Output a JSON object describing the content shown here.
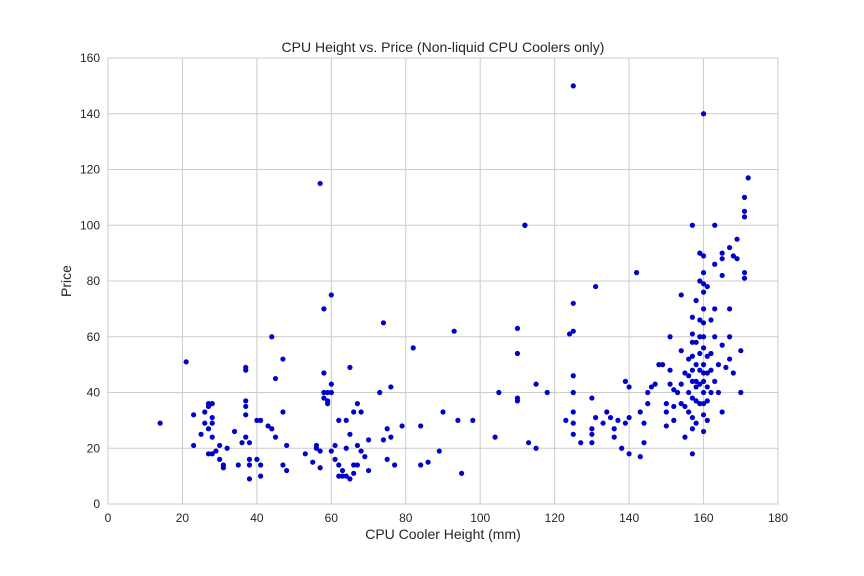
{
  "chart_data": {
    "type": "scatter",
    "title": "CPU Height vs. Price (Non-liquid CPU Coolers only)",
    "xlabel": "CPU Cooler Height (mm)",
    "ylabel": "Price",
    "xlim": [
      0,
      180
    ],
    "ylim": [
      0,
      160
    ],
    "xticks": [
      0,
      20,
      40,
      60,
      80,
      100,
      120,
      140,
      160,
      180
    ],
    "yticks": [
      0,
      20,
      40,
      60,
      80,
      100,
      120,
      140,
      160
    ],
    "grid": true,
    "legend": "none",
    "marker_color": "#0000cc",
    "background_color": "#ffffff",
    "grid_color": "#cccccc",
    "points": [
      [
        14,
        29
      ],
      [
        21,
        51
      ],
      [
        23,
        32
      ],
      [
        23,
        21
      ],
      [
        25,
        25
      ],
      [
        26,
        29
      ],
      [
        26,
        33
      ],
      [
        27,
        18
      ],
      [
        27,
        35
      ],
      [
        27,
        36
      ],
      [
        27,
        27
      ],
      [
        28,
        36
      ],
      [
        28,
        31
      ],
      [
        28,
        29
      ],
      [
        28,
        24
      ],
      [
        28,
        18
      ],
      [
        29,
        19
      ],
      [
        30,
        21
      ],
      [
        30,
        16
      ],
      [
        31,
        14
      ],
      [
        31,
        13
      ],
      [
        32,
        20
      ],
      [
        34,
        26
      ],
      [
        35,
        14
      ],
      [
        36,
        22
      ],
      [
        37,
        49
      ],
      [
        37,
        48
      ],
      [
        37,
        37
      ],
      [
        37,
        35
      ],
      [
        37,
        32
      ],
      [
        37,
        24
      ],
      [
        38,
        22
      ],
      [
        38,
        16
      ],
      [
        38,
        14
      ],
      [
        38,
        9
      ],
      [
        40,
        30
      ],
      [
        40,
        16
      ],
      [
        41,
        30
      ],
      [
        41,
        14
      ],
      [
        41,
        10
      ],
      [
        43,
        28
      ],
      [
        44,
        60
      ],
      [
        44,
        27
      ],
      [
        45,
        45
      ],
      [
        45,
        24
      ],
      [
        47,
        52
      ],
      [
        47,
        33
      ],
      [
        47,
        14
      ],
      [
        48,
        21
      ],
      [
        48,
        12
      ],
      [
        53,
        18
      ],
      [
        55,
        15
      ],
      [
        56,
        20
      ],
      [
        56,
        21
      ],
      [
        57,
        115
      ],
      [
        57,
        19
      ],
      [
        57,
        13
      ],
      [
        58,
        70
      ],
      [
        58,
        47
      ],
      [
        58,
        40
      ],
      [
        58,
        38
      ],
      [
        59,
        40
      ],
      [
        59,
        37
      ],
      [
        59,
        36
      ],
      [
        60,
        75
      ],
      [
        60,
        43
      ],
      [
        60,
        40
      ],
      [
        60,
        19
      ],
      [
        61,
        21
      ],
      [
        61,
        16
      ],
      [
        62,
        30
      ],
      [
        62,
        14
      ],
      [
        62,
        10
      ],
      [
        63,
        12
      ],
      [
        63,
        10
      ],
      [
        64,
        30
      ],
      [
        64,
        20
      ],
      [
        64,
        10
      ],
      [
        65,
        49
      ],
      [
        65,
        25
      ],
      [
        65,
        9
      ],
      [
        66,
        33
      ],
      [
        66,
        14
      ],
      [
        66,
        11
      ],
      [
        67,
        36
      ],
      [
        67,
        21
      ],
      [
        67,
        14
      ],
      [
        68,
        33
      ],
      [
        68,
        19
      ],
      [
        69,
        17
      ],
      [
        70,
        23
      ],
      [
        70,
        12
      ],
      [
        73,
        40
      ],
      [
        74,
        65
      ],
      [
        74,
        23
      ],
      [
        75,
        27
      ],
      [
        75,
        16
      ],
      [
        76,
        42
      ],
      [
        76,
        24
      ],
      [
        77,
        14
      ],
      [
        79,
        28
      ],
      [
        82,
        56
      ],
      [
        84,
        28
      ],
      [
        84,
        14
      ],
      [
        86,
        15
      ],
      [
        89,
        19
      ],
      [
        90,
        33
      ],
      [
        93,
        62
      ],
      [
        94,
        30
      ],
      [
        95,
        11
      ],
      [
        98,
        30
      ],
      [
        104,
        24
      ],
      [
        105,
        40
      ],
      [
        110,
        63
      ],
      [
        110,
        54
      ],
      [
        110,
        38
      ],
      [
        110,
        37
      ],
      [
        112,
        100
      ],
      [
        112,
        100
      ],
      [
        113,
        22
      ],
      [
        115,
        43
      ],
      [
        115,
        20
      ],
      [
        118,
        40
      ],
      [
        123,
        30
      ],
      [
        124,
        61
      ],
      [
        125,
        150
      ],
      [
        125,
        72
      ],
      [
        125,
        62
      ],
      [
        125,
        46
      ],
      [
        125,
        40
      ],
      [
        125,
        33
      ],
      [
        125,
        29
      ],
      [
        125,
        25
      ],
      [
        127,
        22
      ],
      [
        130,
        38
      ],
      [
        130,
        27
      ],
      [
        130,
        25
      ],
      [
        130,
        22
      ],
      [
        131,
        78
      ],
      [
        131,
        31
      ],
      [
        133,
        29
      ],
      [
        134,
        33
      ],
      [
        135,
        31
      ],
      [
        136,
        27
      ],
      [
        136,
        24
      ],
      [
        137,
        30
      ],
      [
        138,
        20
      ],
      [
        139,
        44
      ],
      [
        139,
        29
      ],
      [
        140,
        42
      ],
      [
        140,
        31
      ],
      [
        140,
        18
      ],
      [
        142,
        83
      ],
      [
        143,
        33
      ],
      [
        143,
        17
      ],
      [
        144,
        29
      ],
      [
        144,
        22
      ],
      [
        145,
        40
      ],
      [
        145,
        36
      ],
      [
        146,
        42
      ],
      [
        147,
        43
      ],
      [
        148,
        50
      ],
      [
        149,
        50
      ],
      [
        150,
        36
      ],
      [
        150,
        33
      ],
      [
        150,
        28
      ],
      [
        151,
        60
      ],
      [
        151,
        48
      ],
      [
        151,
        43
      ],
      [
        152,
        41
      ],
      [
        152,
        35
      ],
      [
        152,
        30
      ],
      [
        153,
        40
      ],
      [
        154,
        75
      ],
      [
        154,
        55
      ],
      [
        154,
        43
      ],
      [
        154,
        36
      ],
      [
        155,
        47
      ],
      [
        155,
        35
      ],
      [
        155,
        24
      ],
      [
        156,
        52
      ],
      [
        156,
        46
      ],
      [
        156,
        40
      ],
      [
        156,
        33
      ],
      [
        157,
        100
      ],
      [
        157,
        67
      ],
      [
        157,
        61
      ],
      [
        157,
        58
      ],
      [
        157,
        53
      ],
      [
        157,
        48
      ],
      [
        157,
        44
      ],
      [
        157,
        38
      ],
      [
        157,
        31
      ],
      [
        157,
        27
      ],
      [
        157,
        18
      ],
      [
        158,
        73
      ],
      [
        158,
        58
      ],
      [
        158,
        50
      ],
      [
        158,
        44
      ],
      [
        158,
        42
      ],
      [
        158,
        37
      ],
      [
        158,
        29
      ],
      [
        159,
        90
      ],
      [
        159,
        80
      ],
      [
        159,
        66
      ],
      [
        159,
        60
      ],
      [
        159,
        54
      ],
      [
        159,
        48
      ],
      [
        159,
        43
      ],
      [
        159,
        36
      ],
      [
        160,
        140
      ],
      [
        160,
        89
      ],
      [
        160,
        83
      ],
      [
        160,
        79
      ],
      [
        160,
        76
      ],
      [
        160,
        70
      ],
      [
        160,
        65
      ],
      [
        160,
        60
      ],
      [
        160,
        56
      ],
      [
        160,
        50
      ],
      [
        160,
        47
      ],
      [
        160,
        44
      ],
      [
        160,
        40
      ],
      [
        160,
        36
      ],
      [
        160,
        32
      ],
      [
        160,
        26
      ],
      [
        161,
        78
      ],
      [
        161,
        53
      ],
      [
        161,
        47
      ],
      [
        161,
        42
      ],
      [
        161,
        37
      ],
      [
        161,
        30
      ],
      [
        162,
        66
      ],
      [
        162,
        54
      ],
      [
        162,
        48
      ],
      [
        162,
        40
      ],
      [
        163,
        100
      ],
      [
        163,
        86
      ],
      [
        163,
        70
      ],
      [
        163,
        60
      ],
      [
        163,
        44
      ],
      [
        164,
        50
      ],
      [
        164,
        40
      ],
      [
        165,
        90
      ],
      [
        165,
        88
      ],
      [
        165,
        82
      ],
      [
        165,
        57
      ],
      [
        165,
        33
      ],
      [
        166,
        49
      ],
      [
        167,
        92
      ],
      [
        167,
        70
      ],
      [
        167,
        60
      ],
      [
        167,
        52
      ],
      [
        168,
        89
      ],
      [
        168,
        47
      ],
      [
        169,
        95
      ],
      [
        169,
        88
      ],
      [
        170,
        55
      ],
      [
        170,
        40
      ],
      [
        171,
        110
      ],
      [
        171,
        105
      ],
      [
        171,
        103
      ],
      [
        171,
        83
      ],
      [
        171,
        81
      ],
      [
        172,
        117
      ]
    ]
  }
}
